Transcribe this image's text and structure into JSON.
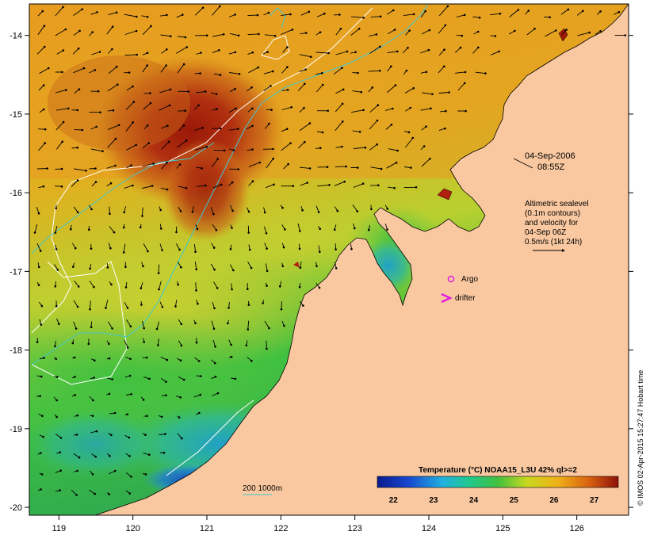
{
  "map": {
    "lon_range": [
      118.6,
      126.7
    ],
    "lat_range": [
      -20.1,
      -13.6
    ],
    "lon_ticks": [
      "119",
      "120",
      "121",
      "122",
      "123",
      "124",
      "125",
      "126"
    ],
    "lat_ticks": [
      "-14",
      "-15",
      "-16",
      "-17",
      "-18",
      "-19",
      "-20"
    ],
    "colors": {
      "land": "#f9c8a0",
      "coast": "#000000",
      "contour_200m": "#40c8d0",
      "contour_1000m": "#ffffff",
      "markers": "#e020e0"
    }
  },
  "annotations": {
    "date": "04-Sep-2006",
    "time": "08:55Z",
    "alt_line1": "Altimetric sealevel",
    "alt_line2": "(0.1m contours)",
    "alt_line3": "and velocity for",
    "alt_line4": "04-Sep 06Z",
    "alt_line5": "0.5m/s (1kt 24h)",
    "argo_label": "Argo",
    "drifter_label": "drifter",
    "depth_legend": "200  1000m"
  },
  "colorbar": {
    "title": "Temperature (°C) NOAA15_L3U 42% ql>=2",
    "ticks": [
      "22",
      "23",
      "24",
      "25",
      "26",
      "27"
    ],
    "range": [
      21.6,
      27.6
    ]
  },
  "credit": "© IMOS 02-Apr-2015 15:27:47 Hobart time"
}
